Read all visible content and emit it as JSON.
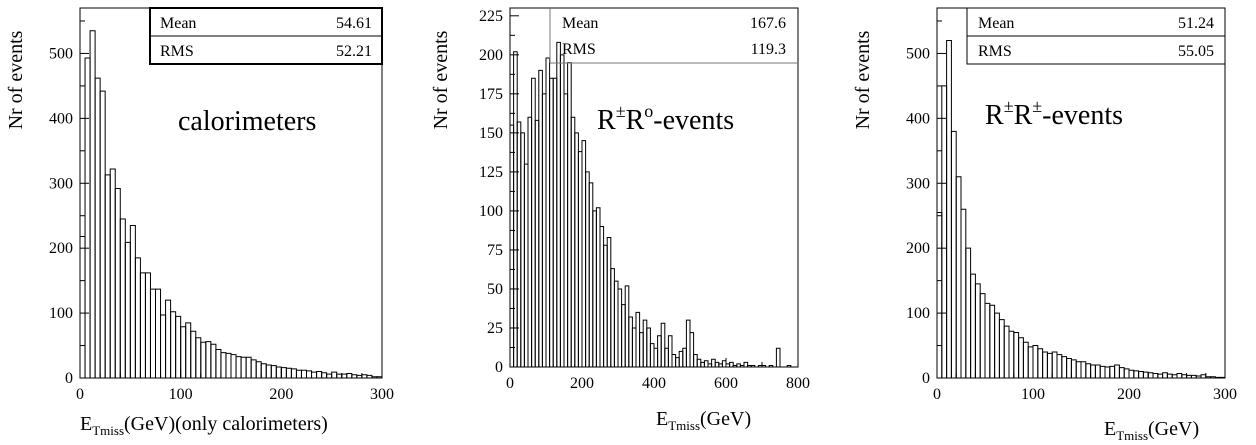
{
  "chart_data": [
    {
      "type": "histogram",
      "annotation": "calorimeters",
      "ylabel": "Nr of events",
      "xlabel_main": "E",
      "xlabel_sub": "Tmiss",
      "xlabel_rest": "(GeV)(only calorimeters)",
      "xlim": [
        0,
        300
      ],
      "ylim": [
        0,
        570
      ],
      "xticks": [
        0,
        100,
        200,
        300
      ],
      "yticks": [
        0,
        100,
        200,
        300,
        400,
        500
      ],
      "stats": {
        "mean_label": "Mean",
        "mean": "54.61",
        "rms_label": "RMS",
        "rms": "52.21"
      },
      "bin_width": 5,
      "values": [
        218,
        493,
        535,
        462,
        442,
        313,
        322,
        292,
        245,
        209,
        235,
        185,
        162,
        162,
        137,
        137,
        97,
        120,
        102,
        95,
        79,
        85,
        72,
        62,
        55,
        56,
        52,
        44,
        39,
        38,
        36,
        33,
        32,
        32,
        28,
        25,
        22,
        20,
        19,
        17,
        16,
        15,
        14,
        12,
        12,
        11,
        9,
        10,
        8,
        6,
        9,
        6,
        6,
        7,
        5,
        4,
        5,
        4,
        2,
        2
      ]
    },
    {
      "type": "histogram",
      "annotation_main": "R",
      "annotation_sup1": "±",
      "annotation_mid": "R",
      "annotation_sup2": "o",
      "annotation_rest": "-events",
      "ylabel": "Nr of events",
      "xlabel_main": "E",
      "xlabel_sub": "Tmiss",
      "xlabel_rest": "(GeV)",
      "xlim": [
        0,
        800
      ],
      "ylim": [
        0,
        230
      ],
      "xticks": [
        0,
        200,
        400,
        600,
        800
      ],
      "yticks": [
        0,
        25,
        50,
        75,
        100,
        125,
        150,
        175,
        200,
        225
      ],
      "stats": {
        "mean_label": "Mean",
        "mean": "167.6",
        "rms_label": "RMS",
        "rms": "119.3"
      },
      "bin_width": 10,
      "values": [
        155,
        202,
        157,
        150,
        130,
        160,
        185,
        158,
        190,
        175,
        198,
        185,
        185,
        208,
        200,
        175,
        195,
        160,
        150,
        138,
        145,
        125,
        118,
        100,
        102,
        90,
        78,
        83,
        63,
        55,
        50,
        40,
        52,
        32,
        25,
        35,
        22,
        30,
        25,
        15,
        12,
        20,
        28,
        12,
        20,
        8,
        6,
        10,
        12,
        30,
        22,
        8,
        5,
        3,
        4,
        2,
        5,
        3,
        2,
        4,
        2,
        3,
        1,
        2,
        1,
        3,
        1,
        1,
        0,
        1,
        1,
        0,
        1,
        0,
        12,
        0,
        0,
        1,
        0,
        0
      ]
    },
    {
      "type": "histogram",
      "annotation_main": "R",
      "annotation_sup1": "±",
      "annotation_mid": "R",
      "annotation_sup2": "±",
      "annotation_rest": "-events",
      "ylabel": "Nr of events",
      "xlabel_main": "E",
      "xlabel_sub": "Tmiss",
      "xlabel_rest": "(GeV)",
      "xlim": [
        0,
        300
      ],
      "ylim": [
        0,
        570
      ],
      "xticks": [
        0,
        100,
        200,
        300
      ],
      "yticks": [
        0,
        100,
        200,
        300,
        400,
        500
      ],
      "stats": {
        "mean_label": "Mean",
        "mean": "51.24",
        "rms_label": "RMS",
        "rms": "55.05"
      },
      "bin_width": 5,
      "values": [
        255,
        450,
        520,
        380,
        310,
        260,
        200,
        160,
        145,
        130,
        115,
        112,
        100,
        90,
        80,
        72,
        70,
        62,
        55,
        48,
        50,
        45,
        40,
        38,
        40,
        36,
        33,
        30,
        28,
        25,
        25,
        22,
        20,
        20,
        18,
        17,
        18,
        20,
        16,
        14,
        12,
        11,
        10,
        9,
        8,
        7,
        6,
        8,
        6,
        5,
        7,
        5,
        4,
        4,
        3,
        5,
        2,
        2,
        1,
        1
      ]
    }
  ]
}
